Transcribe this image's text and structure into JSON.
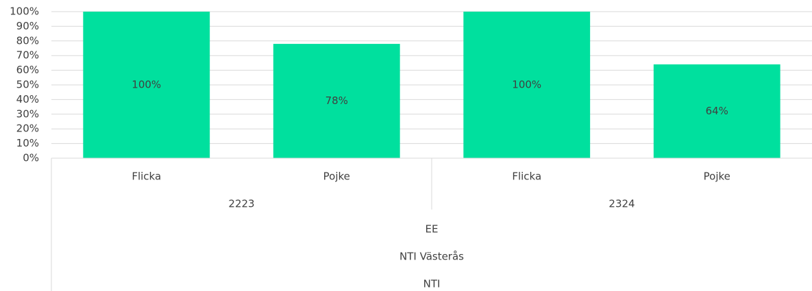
{
  "chart_data": {
    "type": "bar",
    "categories": [
      "Flicka",
      "Pojke",
      "Flicka",
      "Pojke"
    ],
    "groups": [
      "2223",
      "2324"
    ],
    "outer_levels": [
      "EE",
      "NTI Västerås",
      "NTI"
    ],
    "values": [
      100,
      78,
      100,
      64
    ],
    "value_labels": [
      "100%",
      "78%",
      "100%",
      "64%"
    ],
    "color": "#00e09e",
    "ylim": [
      0,
      100
    ],
    "yticks": [
      {
        "value": 0,
        "label": "0%"
      },
      {
        "value": 10,
        "label": "10%"
      },
      {
        "value": 20,
        "label": "20%"
      },
      {
        "value": 30,
        "label": "30%"
      },
      {
        "value": 40,
        "label": "40%"
      },
      {
        "value": 50,
        "label": "50%"
      },
      {
        "value": 60,
        "label": "60%"
      },
      {
        "value": 70,
        "label": "70%"
      },
      {
        "value": 80,
        "label": "80%"
      },
      {
        "value": 90,
        "label": "90%"
      },
      {
        "value": 100,
        "label": "100%"
      }
    ],
    "grid": true
  }
}
